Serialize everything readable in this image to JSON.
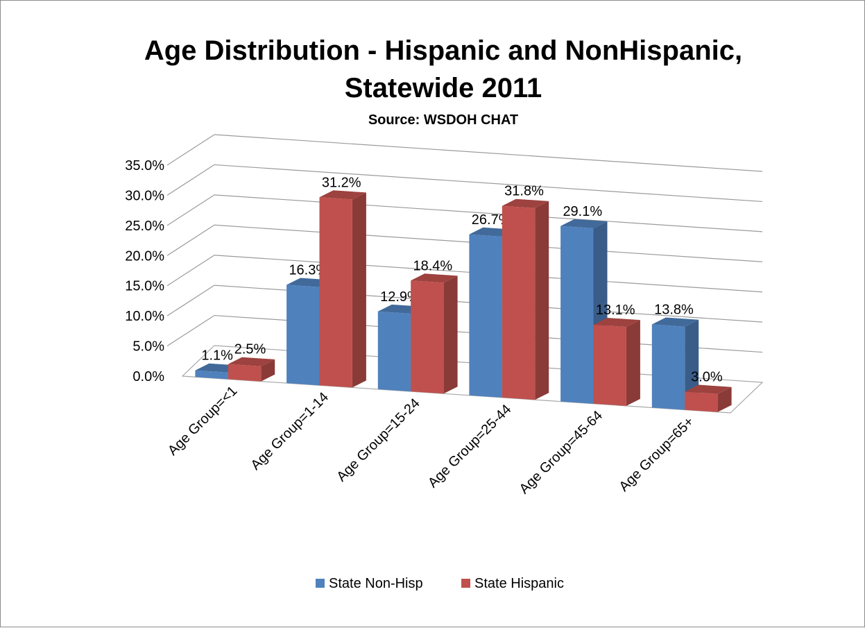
{
  "chart_data": {
    "type": "bar",
    "title_lines": [
      "Age Distribution - Hispanic and NonHispanic,",
      "Statewide 2011"
    ],
    "subtitle": "Source: WSDOH CHAT",
    "categories": [
      "Age Group=<1",
      "Age Group=1-14",
      "Age Group=15-24",
      "Age Group=25-44",
      "Age Group=45-64",
      "Age Group=65+"
    ],
    "series": [
      {
        "name": "State Non-Hisp",
        "values": [
          1.1,
          16.3,
          12.9,
          26.7,
          29.1,
          13.8
        ],
        "labels": [
          "1.1%",
          "16.3%",
          "12.9%",
          "26.7%",
          "29.1%",
          "13.8%"
        ],
        "color": "#4F81BD"
      },
      {
        "name": "State Hispanic",
        "values": [
          2.5,
          31.2,
          18.4,
          31.8,
          13.1,
          3.0
        ],
        "labels": [
          "2.5%",
          "31.2%",
          "18.4%",
          "31.8%",
          "13.1%",
          "3.0%"
        ],
        "color": "#C0504D"
      }
    ],
    "y_ticks": [
      "0.0%",
      "5.0%",
      "10.0%",
      "15.0%",
      "20.0%",
      "25.0%",
      "30.0%",
      "35.0%"
    ],
    "ylim": [
      0,
      35
    ],
    "grid": true,
    "legend_position": "bottom",
    "style": "3d-clustered-column"
  }
}
